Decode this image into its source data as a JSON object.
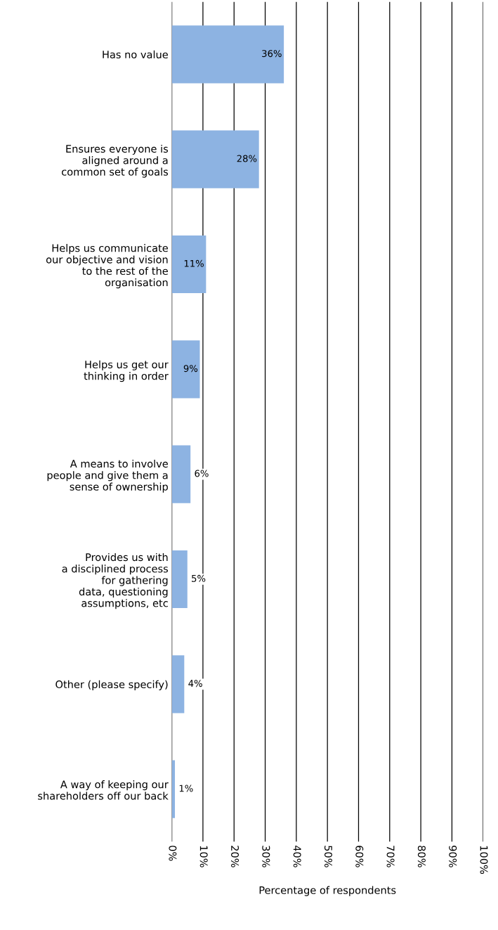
{
  "chart_data": {
    "type": "bar",
    "orientation": "horizontal",
    "xlabel": "Percentage of respondents",
    "categories": [
      "Has no value",
      "Ensures everyone is\naligned around a\ncommon set of goals",
      "Helps us communicate\nour objective and vision\nto the rest of the\norganisation",
      "Helps us get our\nthinking in order",
      "A means to involve\npeople and give them a\nsense of ownership",
      "Provides us with\na disciplined process\nfor gathering\ndata, questioning\nassumptions, etc",
      "Other (please specify)",
      "A way of keeping our\nshareholders off our back"
    ],
    "values": [
      36,
      28,
      11,
      9,
      6,
      5,
      4,
      1
    ],
    "value_labels": [
      "36%",
      "28%",
      "11%",
      "9%",
      "6%",
      "5%",
      "4%",
      "1%"
    ],
    "color": "#8db3e2",
    "xlim": [
      0,
      100
    ],
    "xticks": [
      {
        "value": 0,
        "label": "0%"
      },
      {
        "value": 10,
        "label": "10%"
      },
      {
        "value": 20,
        "label": "20%"
      },
      {
        "value": 30,
        "label": "30%"
      },
      {
        "value": 40,
        "label": "40%"
      },
      {
        "value": 50,
        "label": "50%"
      },
      {
        "value": 60,
        "label": "60%"
      },
      {
        "value": 70,
        "label": "70%"
      },
      {
        "value": 80,
        "label": "80%"
      },
      {
        "value": 90,
        "label": "90%"
      },
      {
        "value": 100,
        "label": "100%"
      }
    ],
    "grid": "x",
    "legend": false
  }
}
